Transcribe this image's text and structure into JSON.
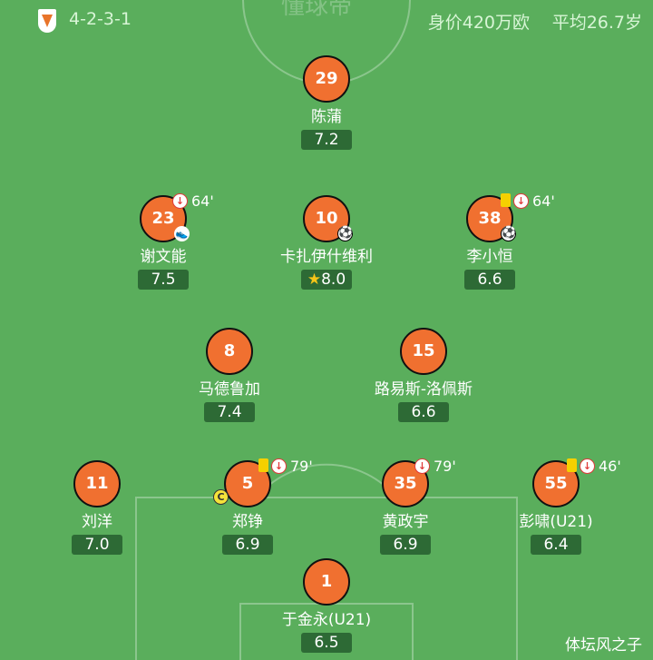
{
  "header": {
    "formation": "4-2-3-1",
    "value": "身价420万欧",
    "avg_age": "平均26.7岁",
    "team_logo": "shandong-taishan-logo"
  },
  "watermark_top": "懂球帝",
  "watermark": "体坛风之子",
  "colors": {
    "pitch": "#5aae5c",
    "player": "#f07030",
    "rating_bg": "#2d6a35"
  },
  "players": [
    {
      "number": "29",
      "name": "陈蒲",
      "rating": "7.2"
    },
    {
      "number": "23",
      "name": "谢文能",
      "rating": "7.5",
      "sub_minute": "64'",
      "assist": true
    },
    {
      "number": "10",
      "name": "卡扎伊什维利",
      "rating": "8.0",
      "goal": true,
      "motm": true
    },
    {
      "number": "38",
      "name": "李小恒",
      "rating": "6.6",
      "sub_minute": "64'",
      "yellow_card": true,
      "goal": true
    },
    {
      "number": "8",
      "name": "马德鲁加",
      "rating": "7.4"
    },
    {
      "number": "15",
      "name": "路易斯-洛佩斯",
      "rating": "6.6"
    },
    {
      "number": "11",
      "name": "刘洋",
      "rating": "7.0"
    },
    {
      "number": "5",
      "name": "郑铮",
      "rating": "6.9",
      "sub_minute": "79'",
      "yellow_card": true,
      "captain": "C"
    },
    {
      "number": "35",
      "name": "黄政宇",
      "rating": "6.9",
      "sub_minute": "79'"
    },
    {
      "number": "55",
      "name": "彭啸(U21)",
      "rating": "6.4",
      "sub_minute": "46'",
      "yellow_card": true
    },
    {
      "number": "1",
      "name": "于金永(U21)",
      "rating": "6.5"
    }
  ]
}
